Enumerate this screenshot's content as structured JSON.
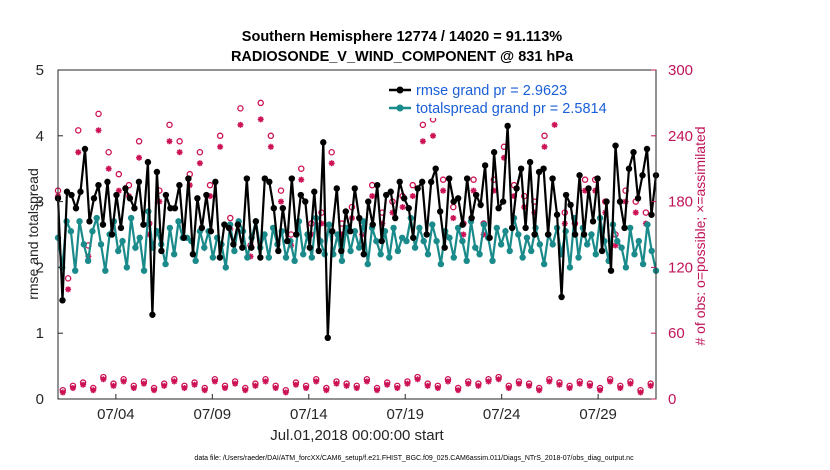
{
  "chart_data": {
    "type": "line",
    "title": [
      "Southern Hemisphere 12774 / 14020 = 91.113%",
      "RADIOSONDE_V_WIND_COMPONENT @ 831 hPa"
    ],
    "xlabel": "Jul.01,2018 00:00:00 start",
    "ylabel_left": "rmse and totalspread",
    "ylabel_right": "# of obs: o=possible; ×=assimilated",
    "xlim": [
      0,
      124
    ],
    "ylim_left": [
      0,
      5
    ],
    "ylim_right": [
      0,
      300
    ],
    "x_ticks": [
      {
        "x": 12,
        "label": "07/04"
      },
      {
        "x": 32,
        "label": "07/09"
      },
      {
        "x": 52,
        "label": "07/14"
      },
      {
        "x": 72,
        "label": "07/19"
      },
      {
        "x": 92,
        "label": "07/24"
      },
      {
        "x": 112,
        "label": "07/29"
      }
    ],
    "y_ticks_left": [
      {
        "v": 0,
        "label": "0"
      },
      {
        "v": 1,
        "label": "1"
      },
      {
        "v": 2,
        "label": "2"
      },
      {
        "v": 3,
        "label": "3"
      },
      {
        "v": 4,
        "label": "4"
      },
      {
        "v": 5,
        "label": "5"
      }
    ],
    "y_ticks_right": [
      {
        "v": 0,
        "label": "0"
      },
      {
        "v": 60,
        "label": "60"
      },
      {
        "v": 120,
        "label": "120"
      },
      {
        "v": 180,
        "label": "180"
      },
      {
        "v": 240,
        "label": "240"
      },
      {
        "v": 300,
        "label": "300"
      }
    ],
    "legend": [
      "rmse grand pr = 2.9623",
      "totalspread grand pr = 2.5814"
    ],
    "colors": {
      "rmse": "#000000",
      "spread": "#1a8a8a",
      "obs": "#cc1155",
      "legend_text": "#1a5fd8",
      "right_axis": "#c0145a"
    },
    "series": [
      {
        "name": "rmse",
        "values": [
          3.05,
          1.5,
          3.15,
          3.1,
          2.9,
          3.15,
          3.8,
          2.7,
          3.05,
          3.25,
          2.65,
          3.3,
          2.5,
          3.1,
          2.6,
          3.2,
          3.05,
          2.9,
          3.3,
          2.65,
          3.6,
          1.28,
          3.45,
          2.25,
          3.1,
          2.9,
          2.9,
          3.25,
          2.45,
          3.35,
          2.2,
          3.05,
          2.6,
          3.1,
          2.55,
          3.3,
          2.15,
          2.65,
          2.6,
          2.35,
          2.65,
          2.3,
          3.35,
          2.3,
          2.7,
          2.15,
          3.35,
          3.3,
          2.9,
          2.25,
          2.9,
          2.4,
          3.35,
          2.5,
          3.1,
          3.0,
          2.3,
          3.15,
          2.25,
          3.9,
          0.93,
          2.55,
          3.2,
          2.25,
          2.85,
          2.55,
          3.2,
          2.75,
          2.2,
          3.0,
          2.65,
          3.25,
          2.4,
          3.1,
          3.15,
          2.75,
          3.3,
          3.05,
          2.9,
          2.45,
          3.2,
          3.3,
          2.5,
          3.3,
          3.5,
          2.85,
          2.3,
          3.35,
          3.0,
          3.05,
          2.65,
          3.35,
          2.75,
          3.1,
          2.95,
          3.55,
          2.45,
          3.75,
          2.9,
          3.0,
          4.15,
          2.6,
          3.2,
          3.5,
          2.6,
          3.6,
          2.5,
          3.45,
          3.5,
          2.5,
          3.35,
          2.8,
          1.55,
          3.1,
          2.95,
          2.5,
          3.4,
          2.5,
          3.2,
          2.7,
          3.35,
          2.25,
          3.0,
          1.95,
          3.85,
          3.0,
          2.6,
          3.5,
          3.75,
          3.05,
          3.4,
          3.8,
          2.8,
          3.4
        ]
      },
      {
        "name": "totalspread",
        "values": [
          2.45,
          2.0,
          2.7,
          2.55,
          1.95,
          2.7,
          2.35,
          2.1,
          2.55,
          2.75,
          2.35,
          1.95,
          2.5,
          2.7,
          2.25,
          2.4,
          2.0,
          2.75,
          2.3,
          2.45,
          1.95,
          2.85,
          2.3,
          2.55,
          2.35,
          2.05,
          2.6,
          2.2,
          2.7,
          2.45,
          2.45,
          2.4,
          2.1,
          2.55,
          2.3,
          2.55,
          2.15,
          2.45,
          2.35,
          2.0,
          2.65,
          2.25,
          2.7,
          2.55,
          2.15,
          2.45,
          2.7,
          2.3,
          2.5,
          2.15,
          2.6,
          2.35,
          2.55,
          2.15,
          2.4,
          2.1,
          2.7,
          2.2,
          2.5,
          2.15,
          2.75,
          2.4,
          2.2,
          2.65,
          2.2,
          2.5,
          2.1,
          2.6,
          2.25,
          2.55,
          2.3,
          2.7,
          2.05,
          2.6,
          2.4,
          2.2,
          2.55,
          2.15,
          2.6,
          2.25,
          2.45,
          2.4,
          2.75,
          2.3,
          2.6,
          2.4,
          2.2,
          2.65,
          2.4,
          2.05,
          2.55,
          2.45,
          2.15,
          2.6,
          2.4,
          2.1,
          2.7,
          2.3,
          2.2,
          2.65,
          2.45,
          2.1,
          2.6,
          2.35,
          2.55,
          2.25,
          2.75,
          2.5,
          2.15,
          2.45,
          2.25,
          2.6,
          2.35,
          2.05,
          2.5,
          2.35,
          2.6,
          2.2,
          2.55,
          2.0,
          2.75,
          2.15,
          2.6,
          2.35,
          2.5,
          2.2,
          2.75,
          2.4,
          2.1,
          2.65,
          2.4,
          2.3,
          2.0,
          2.6,
          2.2,
          2.4,
          2.05,
          2.65,
          2.25,
          1.95
        ]
      }
    ],
    "obs_possible_night": [
      190,
      110,
      245,
      140,
      260,
      225,
      205,
      195,
      235,
      160,
      190,
      250,
      235,
      205,
      225,
      195,
      240,
      165,
      265,
      140,
      270,
      240,
      190,
      150,
      210,
      160,
      170,
      225,
      160,
      175,
      160,
      195,
      170,
      180,
      185,
      195,
      250,
      255,
      200,
      175,
      160,
      200,
      160,
      200,
      230,
      195,
      185,
      180,
      240,
      260,
      170,
      160,
      200,
      200,
      180,
      150,
      190,
      180,
      170
    ],
    "obs_assimilated_night": [
      185,
      100,
      225,
      130,
      245,
      210,
      190,
      185,
      220,
      150,
      180,
      235,
      225,
      195,
      215,
      185,
      230,
      155,
      250,
      130,
      255,
      230,
      180,
      140,
      200,
      150,
      160,
      215,
      150,
      165,
      150,
      185,
      160,
      170,
      175,
      185,
      235,
      240,
      190,
      165,
      150,
      190,
      150,
      190,
      220,
      185,
      175,
      170,
      230,
      250,
      160,
      150,
      190,
      190,
      170,
      140,
      180,
      170,
      160
    ],
    "obs_possible_day": [
      8,
      12,
      15,
      10,
      20,
      14,
      18,
      12,
      16,
      10,
      14,
      18,
      12,
      15,
      10,
      18,
      12,
      16,
      10,
      14,
      18,
      12,
      8,
      15,
      12,
      18,
      10,
      16,
      14,
      12,
      18,
      10,
      15,
      12,
      16,
      20,
      14,
      12,
      18,
      10,
      16,
      14,
      18,
      20,
      12,
      16,
      14,
      10,
      18,
      15,
      12,
      16,
      14,
      10,
      18,
      12,
      16,
      8,
      14
    ],
    "obs_assimilated_day": [
      6,
      10,
      13,
      8,
      18,
      12,
      16,
      10,
      14,
      8,
      12,
      16,
      10,
      13,
      8,
      16,
      10,
      14,
      8,
      12,
      16,
      10,
      6,
      13,
      10,
      16,
      8,
      14,
      12,
      10,
      16,
      8,
      13,
      10,
      14,
      18,
      12,
      10,
      16,
      8,
      14,
      12,
      16,
      18,
      10,
      14,
      12,
      8,
      16,
      13,
      10,
      14,
      12,
      8,
      16,
      10,
      14,
      6,
      12
    ]
  },
  "footnote": "data file: /Users/raeder/DAI/ATM_forcXX/CAM6_setup/f.e21.FHIST_BGC.f09_025.CAM6assim.011/Diags_NTrS_2018-07/obs_diag_output.nc"
}
